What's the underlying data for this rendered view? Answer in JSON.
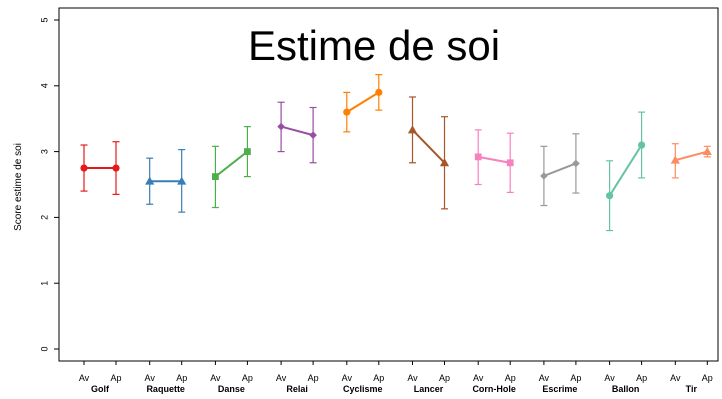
{
  "chart_data": {
    "type": "line",
    "title": "Estime de soi",
    "ylabel": "Score estime de soi",
    "xlabel": "",
    "ylim": [
      0,
      5
    ],
    "yticks": [
      0,
      1,
      2,
      3,
      4,
      5
    ],
    "x_ticks_per_group": [
      "Av",
      "Ap"
    ],
    "grid": false,
    "groups": [
      {
        "name": "Golf",
        "color": "#e41a1c",
        "marker": "circle",
        "av": {
          "mean": 2.75,
          "low": 2.4,
          "high": 3.1
        },
        "ap": {
          "mean": 2.75,
          "low": 2.35,
          "high": 3.15
        }
      },
      {
        "name": "Raquette",
        "color": "#377eb8",
        "marker": "triangle",
        "av": {
          "mean": 2.55,
          "low": 2.2,
          "high": 2.9
        },
        "ap": {
          "mean": 2.55,
          "low": 2.08,
          "high": 3.03
        }
      },
      {
        "name": "Danse",
        "color": "#4daf4a",
        "marker": "square",
        "av": {
          "mean": 2.62,
          "low": 2.15,
          "high": 3.08
        },
        "ap": {
          "mean": 3.0,
          "low": 2.62,
          "high": 3.38
        }
      },
      {
        "name": "Relai",
        "color": "#984ea3",
        "marker": "diamond",
        "av": {
          "mean": 3.38,
          "low": 3.0,
          "high": 3.75
        },
        "ap": {
          "mean": 3.25,
          "low": 2.83,
          "high": 3.67
        }
      },
      {
        "name": "Cyclisme",
        "color": "#ff7f00",
        "marker": "circle",
        "av": {
          "mean": 3.6,
          "low": 3.3,
          "high": 3.9
        },
        "ap": {
          "mean": 3.9,
          "low": 3.63,
          "high": 4.17
        }
      },
      {
        "name": "Lancer",
        "color": "#a65628",
        "marker": "triangle",
        "av": {
          "mean": 3.33,
          "low": 2.83,
          "high": 3.83
        },
        "ap": {
          "mean": 2.83,
          "low": 2.13,
          "high": 3.53
        }
      },
      {
        "name": "Corn-Hole",
        "color": "#f781bf",
        "marker": "square",
        "av": {
          "mean": 2.92,
          "low": 2.5,
          "high": 3.33
        },
        "ap": {
          "mean": 2.83,
          "low": 2.38,
          "high": 3.28
        }
      },
      {
        "name": "Escrime",
        "color": "#999999",
        "marker": "diamond",
        "av": {
          "mean": 2.63,
          "low": 2.18,
          "high": 3.08
        },
        "ap": {
          "mean": 2.82,
          "low": 2.37,
          "high": 3.27
        }
      },
      {
        "name": "Ballon",
        "color": "#66c2a5",
        "marker": "circle",
        "av": {
          "mean": 2.33,
          "low": 1.8,
          "high": 2.86
        },
        "ap": {
          "mean": 3.1,
          "low": 2.6,
          "high": 3.6
        }
      },
      {
        "name": "Tir",
        "color": "#fc8d62",
        "marker": "triangle",
        "av": {
          "mean": 2.87,
          "low": 2.6,
          "high": 3.12
        },
        "ap": {
          "mean": 3.0,
          "low": 2.92,
          "high": 3.08
        }
      }
    ]
  }
}
